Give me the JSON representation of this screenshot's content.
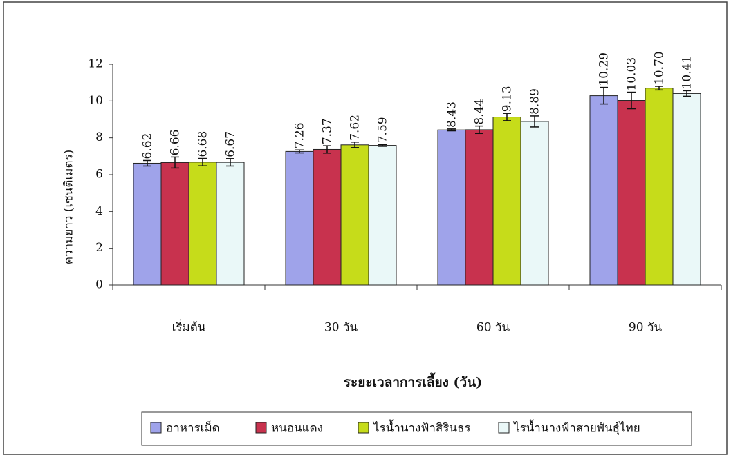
{
  "chart_data": {
    "type": "bar",
    "x_label": "ระยะเวลาการเลี้ยง (วัน)",
    "y_label": "ความยาว (เซนติเมตร)",
    "categories": [
      "เริ่มต้น",
      "30 วัน",
      "60 วัน",
      "90 วัน"
    ],
    "series": [
      {
        "name": "อาหารเม็ด",
        "color": "#9fa3ea",
        "values": [
          6.62,
          7.26,
          8.43,
          10.29
        ],
        "errors": [
          0.15,
          0.08,
          0.05,
          0.45
        ]
      },
      {
        "name": "หนอนแดง",
        "color": "#c8324e",
        "values": [
          6.66,
          7.37,
          8.44,
          10.03
        ],
        "errors": [
          0.3,
          0.2,
          0.2,
          0.45
        ]
      },
      {
        "name": "ไรน้ำนางฟ้าสิรินธร",
        "color": "#c6dc1a",
        "values": [
          6.68,
          7.62,
          9.13,
          10.7
        ],
        "value_labels": [
          "6.68",
          "7.62",
          "9.13",
          "10.70"
        ],
        "errors": [
          0.2,
          0.15,
          0.2,
          0.1
        ]
      },
      {
        "name": "ไรน้ำนางฟ้าสายพันธุ์ไทย",
        "color": "#eaf8f8",
        "values": [
          6.67,
          7.59,
          8.89,
          10.41
        ],
        "errors": [
          0.2,
          0.05,
          0.3,
          0.15
        ]
      }
    ],
    "ylim": [
      0,
      12
    ],
    "yticks": [
      0,
      2,
      4,
      6,
      8,
      10,
      12
    ],
    "grid": false,
    "legend": "bottom"
  }
}
